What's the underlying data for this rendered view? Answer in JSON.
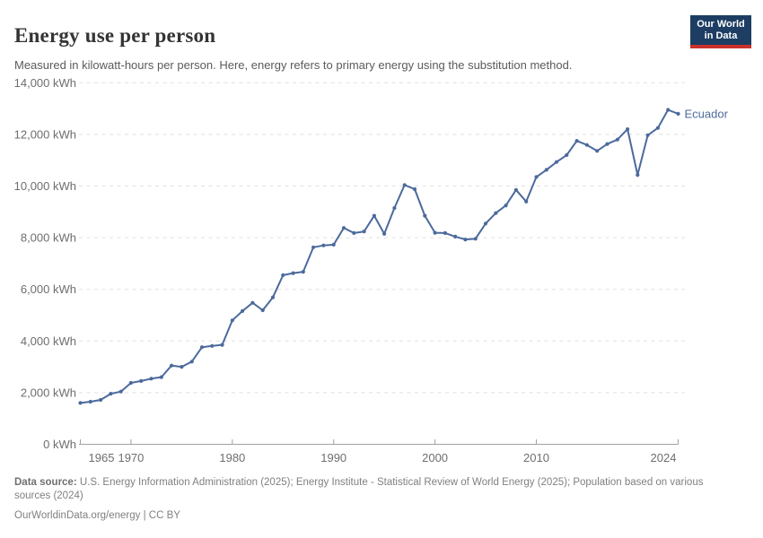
{
  "header": {
    "title": "Energy use per person",
    "subtitle": "Measured in kilowatt-hours per person. Here, energy refers to primary energy using the substitution method.",
    "logo": {
      "line1": "Our World",
      "line2": "in Data"
    }
  },
  "colors": {
    "line": "#4c6a9c",
    "grid": "#e0e0e0",
    "axis": "#a1a1a1",
    "tick_label": "#6e6e6e",
    "logo_bg": "#1d3d63",
    "logo_accent": "#c9322c"
  },
  "chart_data": {
    "type": "line",
    "title": "Energy use per person",
    "unit": "kWh",
    "xlim": [
      1965,
      2024
    ],
    "ylim": [
      0,
      14000
    ],
    "grid": "horizontal-dashed",
    "legend_position": "end-of-line-label",
    "x": [
      1965,
      1966,
      1967,
      1968,
      1969,
      1970,
      1971,
      1972,
      1973,
      1974,
      1975,
      1976,
      1977,
      1978,
      1979,
      1980,
      1981,
      1982,
      1983,
      1984,
      1985,
      1986,
      1987,
      1988,
      1989,
      1990,
      1991,
      1992,
      1993,
      1994,
      1995,
      1996,
      1997,
      1998,
      1999,
      2000,
      2001,
      2002,
      2003,
      2004,
      2005,
      2006,
      2007,
      2008,
      2009,
      2010,
      2011,
      2012,
      2013,
      2014,
      2015,
      2016,
      2017,
      2018,
      2019,
      2020,
      2021,
      2022,
      2023,
      2024
    ],
    "series": [
      {
        "name": "Ecuador",
        "color": "#4c6a9c",
        "values": [
          1600,
          1650,
          1720,
          1960,
          2040,
          2380,
          2450,
          2540,
          2600,
          3050,
          3000,
          3200,
          3760,
          3810,
          3850,
          4800,
          5160,
          5480,
          5190,
          5690,
          6550,
          6630,
          6680,
          7630,
          7700,
          7730,
          8380,
          8180,
          8240,
          8850,
          8150,
          9150,
          10040,
          9880,
          8850,
          8190,
          8180,
          8040,
          7930,
          7960,
          8550,
          8950,
          9250,
          9850,
          9400,
          10350,
          10630,
          10930,
          11200,
          11750,
          11590,
          11360,
          11630,
          11800,
          12200,
          10430,
          11970,
          12250,
          12950,
          12800
        ]
      }
    ],
    "xticks": [
      1965,
      1970,
      1980,
      1990,
      2000,
      2010,
      2024
    ],
    "yticks": [
      {
        "v": 0,
        "label": "0 kWh"
      },
      {
        "v": 2000,
        "label": "2,000 kWh"
      },
      {
        "v": 4000,
        "label": "4,000 kWh"
      },
      {
        "v": 6000,
        "label": "6,000 kWh"
      },
      {
        "v": 8000,
        "label": "8,000 kWh"
      },
      {
        "v": 10000,
        "label": "10,000 kWh"
      },
      {
        "v": 12000,
        "label": "12,000 kWh"
      },
      {
        "v": 14000,
        "label": "14,000 kWh"
      }
    ]
  },
  "footer": {
    "datasource_label": "Data source:",
    "datasource_text": " U.S. Energy Information Administration (2025); Energy Institute - Statistical Review of World Energy (2025); Population based on various sources (2024)",
    "link_text": "OurWorldinData.org/energy",
    "license_suffix": " | CC BY"
  }
}
